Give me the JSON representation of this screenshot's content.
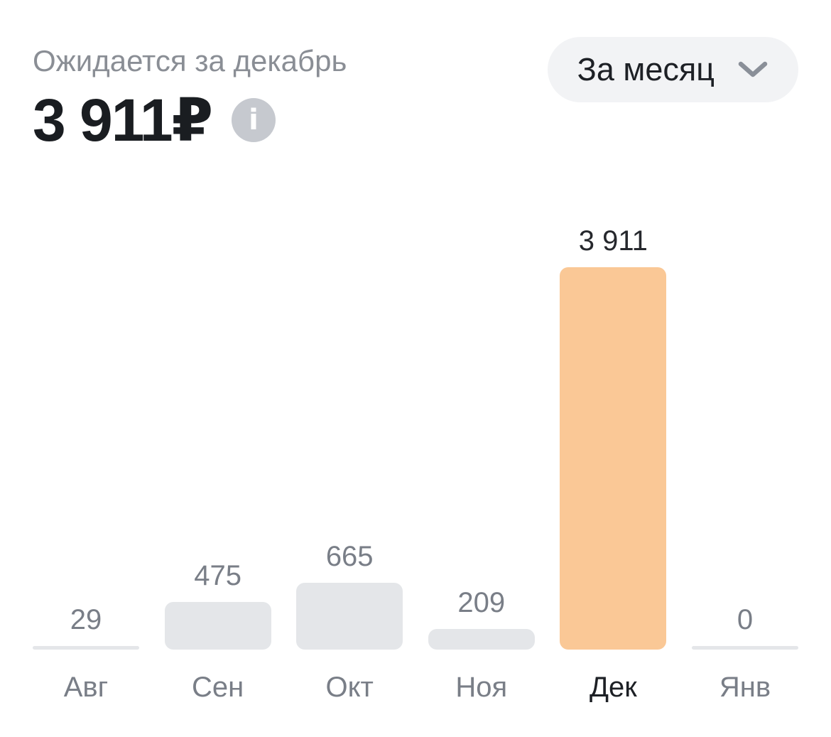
{
  "header": {
    "subtitle": "Ожидается за декабрь",
    "amount": "3 911₽",
    "period_selector": {
      "label": "За месяц",
      "chevron_icon": "chevron-down-icon"
    },
    "info_icon": {
      "name": "info-icon",
      "glyph": "i"
    }
  },
  "colors": {
    "background": "#ffffff",
    "bar_default": "#e4e6e9",
    "bar_highlight": "#fac896",
    "value_label_default": "#797e87",
    "value_label_highlight": "#26282d",
    "month_label_default": "#797e87",
    "month_label_highlight": "#1d2025",
    "subtitle_text": "#8a8e95",
    "amount_text": "#1a1d21",
    "pill_background": "#f2f3f5",
    "info_circle": "#c6c9cf"
  },
  "chart_data": {
    "type": "bar",
    "title": "Ожидается за декабрь 3 911₽",
    "categories": [
      "Авг",
      "Сен",
      "Окт",
      "Ноя",
      "Дек",
      "Янв"
    ],
    "values": [
      29,
      475,
      665,
      209,
      3911,
      0
    ],
    "value_labels": [
      "29",
      "475",
      "665",
      "209",
      "3 911",
      "0"
    ],
    "highlighted_index": 4,
    "highlighted_category": "Дек",
    "xlabel": "",
    "ylabel": "",
    "ylim": [
      0,
      3911
    ],
    "grid": false,
    "legend": "none",
    "bar_corner_radius": "rounded",
    "zero_value_style": "thin-baseline-strip"
  }
}
